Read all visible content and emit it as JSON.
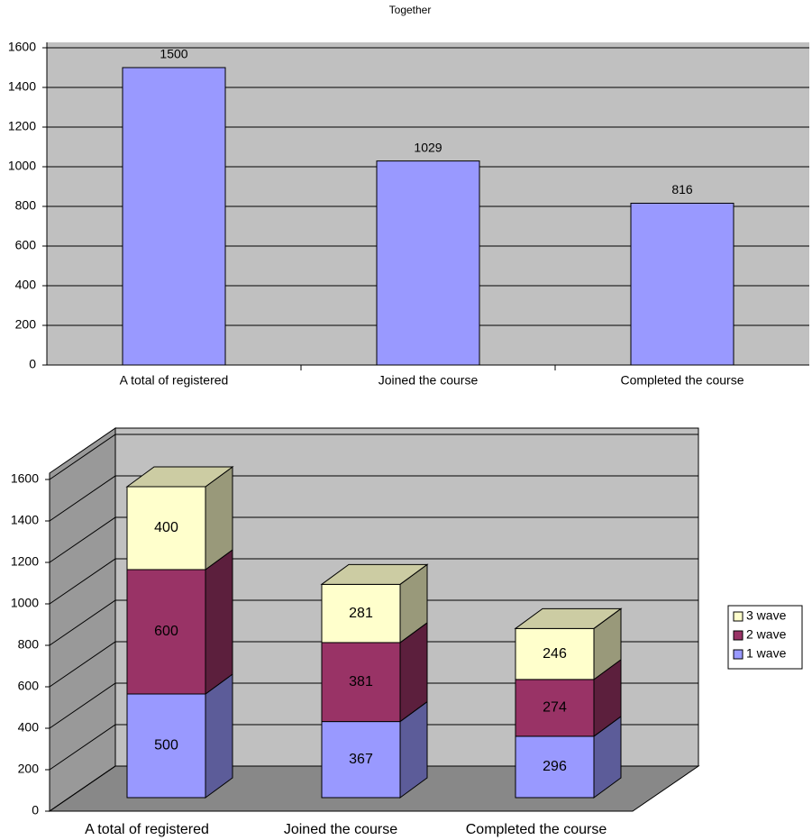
{
  "chart_data": [
    {
      "type": "bar",
      "title": "Together",
      "categories": [
        "A total of registered",
        "Joined the course",
        "Completed the course"
      ],
      "values": [
        1500,
        1029,
        816
      ],
      "color": "#9999ff",
      "ylim": [
        0,
        1600
      ],
      "yticks": [
        0,
        200,
        400,
        600,
        800,
        1000,
        1200,
        1400,
        1600
      ],
      "grid": true
    },
    {
      "type": "stacked_bar_3d",
      "categories": [
        "A total of registered",
        "Joined the course",
        "Completed the course"
      ],
      "series": [
        {
          "name": "1 wave",
          "color": "#9999ff",
          "values": [
            500,
            367,
            296
          ]
        },
        {
          "name": "2 wave",
          "color": "#993366",
          "values": [
            600,
            381,
            274
          ]
        },
        {
          "name": "3 wave",
          "color": "#ffffcc",
          "values": [
            400,
            281,
            246
          ]
        }
      ],
      "ylim": [
        0,
        1600
      ],
      "yticks": [
        0,
        200,
        400,
        600,
        800,
        1000,
        1200,
        1400,
        1600
      ],
      "grid": true,
      "legend": "right"
    }
  ]
}
